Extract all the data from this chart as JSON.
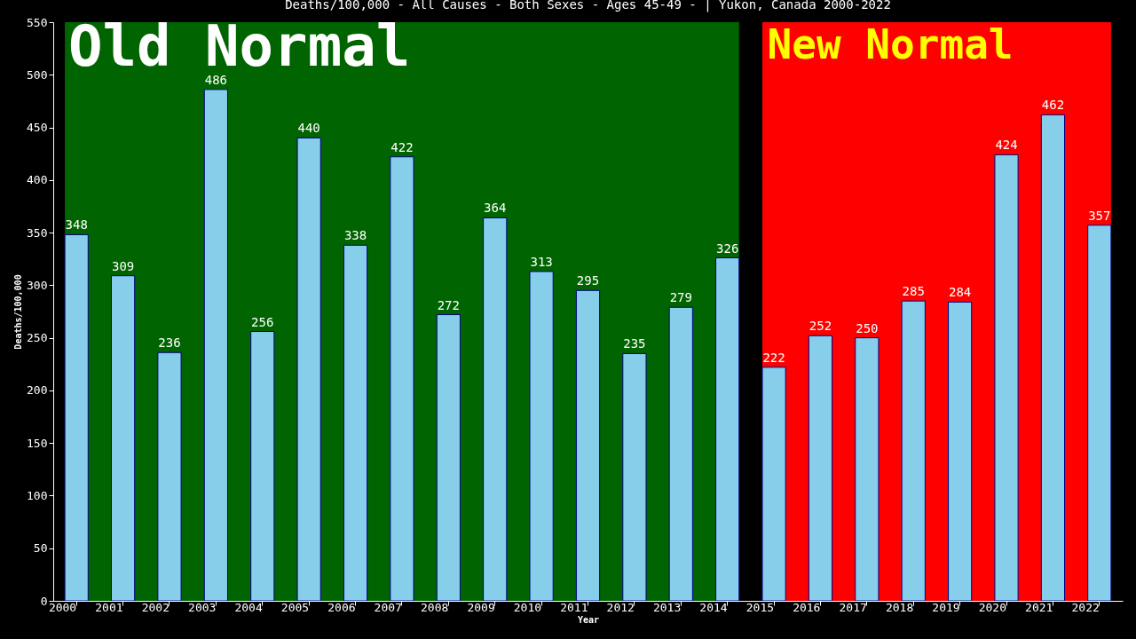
{
  "chart_data": {
    "type": "bar",
    "title": "Deaths/100,000 - All Causes - Both Sexes - Ages 45-49 -  | Yukon, Canada 2000-2022",
    "xlabel": "Year",
    "ylabel": "Deaths/100,000",
    "categories": [
      "2000",
      "2001",
      "2002",
      "2003",
      "2004",
      "2005",
      "2006",
      "2007",
      "2008",
      "2009",
      "2010",
      "2011",
      "2012",
      "2013",
      "2014",
      "2015",
      "2016",
      "2017",
      "2018",
      "2019",
      "2020",
      "2021",
      "2022"
    ],
    "values": [
      348,
      309,
      236,
      486,
      256,
      440,
      338,
      422,
      272,
      364,
      313,
      295,
      235,
      279,
      326,
      222,
      252,
      250,
      285,
      284,
      424,
      462,
      357
    ],
    "color": "#87ceeb",
    "data_labels": true,
    "ylim": [
      0,
      550
    ],
    "yticks": [
      0,
      50,
      100,
      150,
      200,
      250,
      300,
      350,
      400,
      450,
      500,
      550
    ],
    "grid": false,
    "bands": [
      {
        "axis": "x",
        "from": "2000",
        "to": "2014",
        "label": "Old Normal",
        "color": "#006400"
      },
      {
        "axis": "x",
        "from": "2015",
        "to": "2022",
        "label": "New Normal",
        "color": "#ff0000"
      }
    ]
  }
}
